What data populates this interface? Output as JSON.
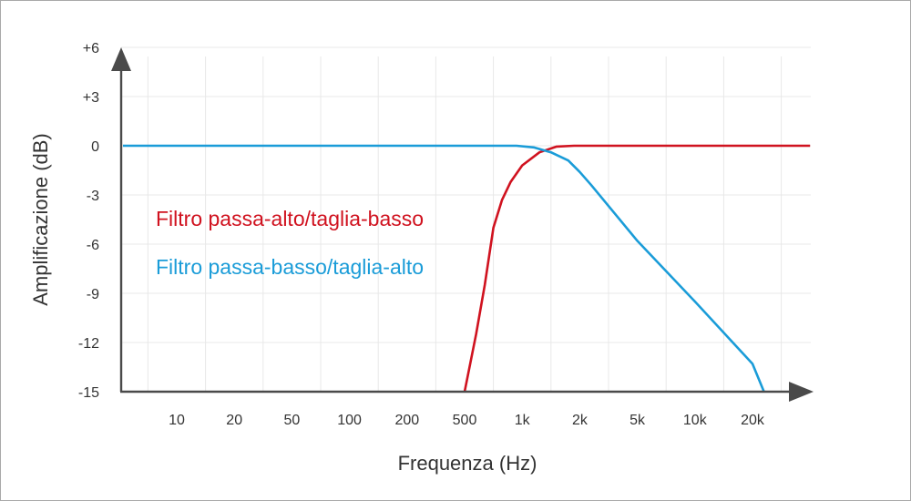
{
  "chart_data": {
    "type": "line",
    "xlabel": "Frequenza (Hz)",
    "ylabel": "Amplificazione (dB)",
    "x_ticks": [
      "10",
      "20",
      "50",
      "100",
      "200",
      "500",
      "1k",
      "2k",
      "5k",
      "10k",
      "20k"
    ],
    "y_ticks": [
      "+6",
      "+3",
      "0",
      "-3",
      "-6",
      "-9",
      "-12",
      "-15"
    ],
    "ylim": [
      -15,
      6
    ],
    "grid": true,
    "series": [
      {
        "name": "Filtro passa-alto/taglia-basso",
        "color": "#d0121f",
        "x_pos": [
          5.0,
          5.2,
          5.35,
          5.5,
          5.65,
          5.8,
          6.0,
          6.3,
          6.6,
          6.9,
          7.0,
          8.0,
          9.0,
          10.0,
          11.0
        ],
        "values": [
          -15,
          -11.5,
          -8.5,
          -5,
          -3.3,
          -2.2,
          -1.2,
          -0.4,
          -0.05,
          0,
          0,
          0,
          0,
          0,
          0
        ]
      },
      {
        "name": "Filtro passa-basso/taglia-alto",
        "color": "#1a9cd8",
        "x_pos": [
          -2.0,
          0.0,
          2.0,
          4.0,
          5.0,
          5.5,
          5.9,
          6.2,
          6.5,
          6.8,
          7.0,
          7.2,
          8.0,
          9.0,
          10.0,
          10.2
        ],
        "values": [
          0,
          0,
          0,
          0,
          0,
          0,
          0,
          -0.1,
          -0.4,
          -0.9,
          -1.6,
          -2.4,
          -5.8,
          -9.5,
          -13.3,
          -15
        ]
      }
    ]
  }
}
